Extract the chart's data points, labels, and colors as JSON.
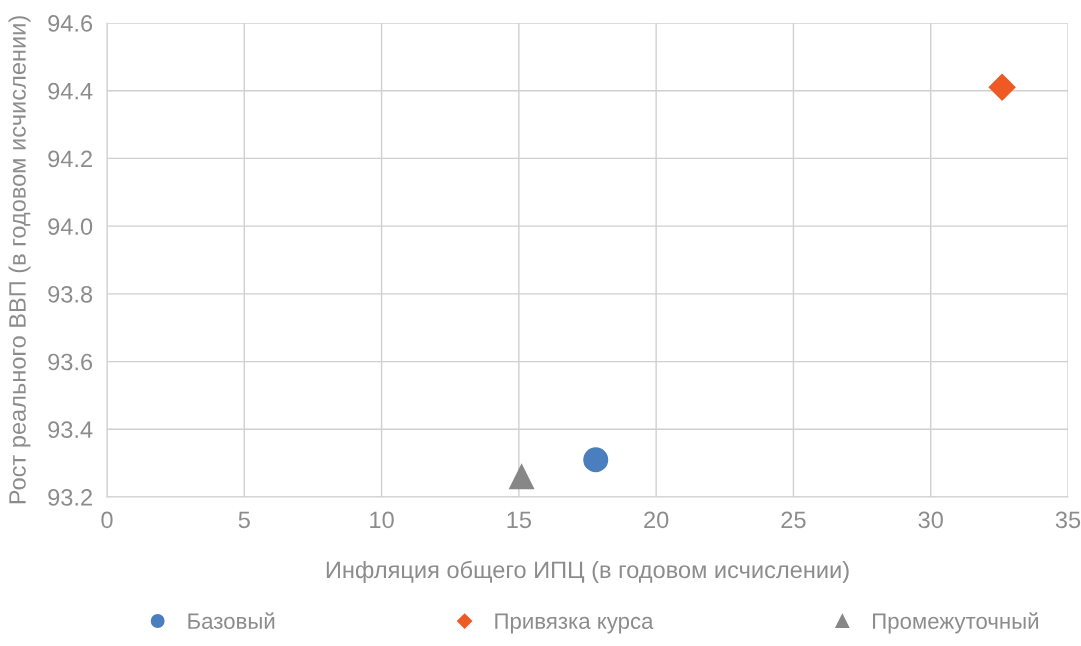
{
  "chart_data": {
    "type": "scatter",
    "xlabel": "Инфляция общего ИПЦ (в годовом исчислении)",
    "ylabel": "Рост реального ВВП (в годовом исчислении)",
    "xlim": [
      0,
      35
    ],
    "xticks": [
      0,
      5,
      10,
      15,
      20,
      25,
      30,
      35
    ],
    "ylim": [
      93.2,
      94.6
    ],
    "yticks": [
      {
        "value": 93.2,
        "label": "93.2"
      },
      {
        "value": 93.4,
        "label": "93.4"
      },
      {
        "value": 93.6,
        "label": "93.6"
      },
      {
        "value": 93.8,
        "label": "93.8"
      },
      {
        "value": 94.0,
        "label": "94.0"
      },
      {
        "value": 94.2,
        "label": "94.2"
      },
      {
        "value": 94.4,
        "label": "94.4"
      },
      {
        "value": 94.6,
        "label": "94.6"
      }
    ],
    "grid": true,
    "legend": "bottom",
    "series": [
      {
        "name": "Базовый",
        "color": "#4a7ebf",
        "marker": "circle",
        "x": [
          17.8
        ],
        "values": [
          93.31
        ]
      },
      {
        "name": "Привязка курса",
        "color": "#ef5a24",
        "marker": "diamond",
        "x": [
          32.6
        ],
        "values": [
          94.41
        ]
      },
      {
        "name": "Промежуточный",
        "color": "#878787",
        "marker": "triangle",
        "x": [
          15.1
        ],
        "values": [
          93.26
        ]
      }
    ]
  }
}
